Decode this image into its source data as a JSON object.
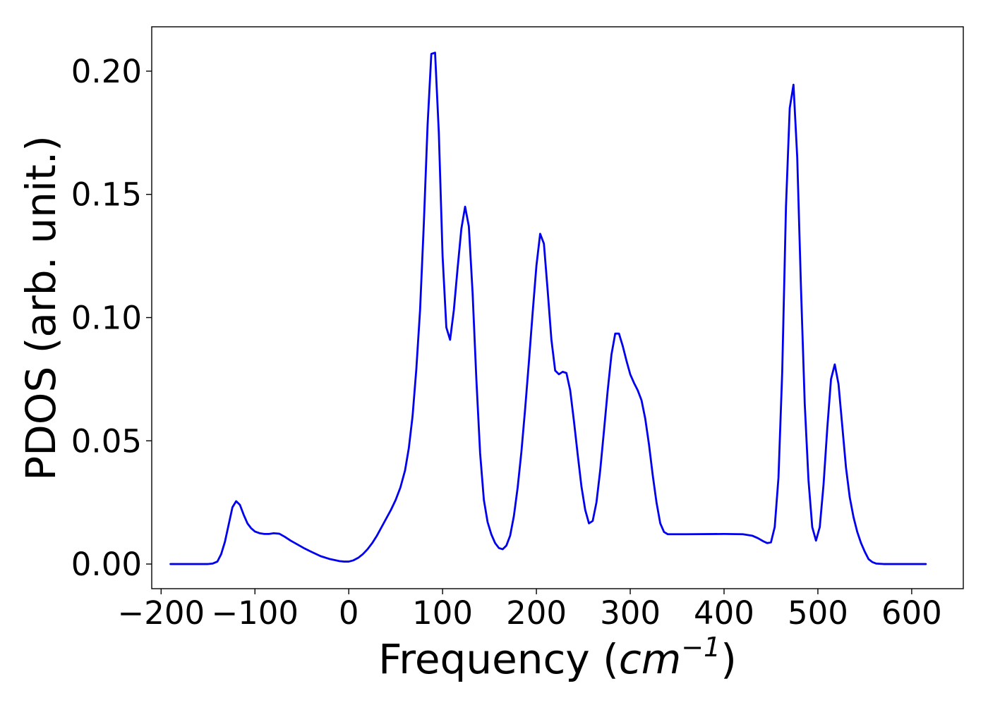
{
  "chart_data": {
    "type": "line",
    "xlabel": "Frequency (cm⁻¹)",
    "xlabel_parts": {
      "prefix": "Frequency (",
      "unit": "cm",
      "exponent": "−1",
      "suffix": ")"
    },
    "ylabel": "PDOS (arb. unit.)",
    "xlim": [
      -210,
      655
    ],
    "ylim": [
      -0.01,
      0.218
    ],
    "grid": false,
    "xticks": [
      -200,
      -100,
      0,
      100,
      200,
      300,
      400,
      500,
      600
    ],
    "xtick_labels": [
      "−200",
      "−100",
      "0",
      "100",
      "200",
      "300",
      "400",
      "500",
      "600"
    ],
    "yticks": [
      0.0,
      0.05,
      0.1,
      0.15,
      0.2
    ],
    "ytick_labels": [
      "0.00",
      "0.05",
      "0.10",
      "0.15",
      "0.20"
    ],
    "series": [
      {
        "color": "#0000ee",
        "x": [
          -190,
          -150,
          -145,
          -140,
          -136,
          -132,
          -128,
          -124,
          -120,
          -116,
          -112,
          -108,
          -104,
          -100,
          -95,
          -90,
          -85,
          -80,
          -74,
          -68,
          -62,
          -55,
          -48,
          -40,
          -30,
          -20,
          -10,
          -5,
          0,
          5,
          10,
          15,
          20,
          25,
          30,
          35,
          40,
          45,
          50,
          55,
          60,
          64,
          68,
          72,
          76,
          80,
          84,
          88,
          92,
          96,
          100,
          104,
          108,
          112,
          116,
          120,
          124,
          128,
          132,
          136,
          140,
          144,
          148,
          152,
          156,
          160,
          164,
          168,
          172,
          176,
          180,
          184,
          188,
          192,
          196,
          200,
          204,
          208,
          212,
          216,
          220,
          224,
          228,
          232,
          236,
          240,
          244,
          248,
          252,
          256,
          260,
          264,
          268,
          272,
          276,
          280,
          284,
          288,
          292,
          296,
          300,
          304,
          308,
          312,
          316,
          320,
          324,
          328,
          332,
          336,
          340,
          345,
          360,
          400,
          420,
          430,
          436,
          442,
          446,
          450,
          454,
          458,
          462,
          466,
          470,
          474,
          478,
          482,
          486,
          490,
          494,
          498,
          502,
          506,
          510,
          514,
          518,
          522,
          526,
          530,
          534,
          538,
          542,
          546,
          550,
          554,
          558,
          562,
          570,
          615
        ],
        "y": [
          0.0,
          0.0,
          0.0002,
          0.001,
          0.004,
          0.009,
          0.016,
          0.023,
          0.0255,
          0.024,
          0.02,
          0.0165,
          0.0145,
          0.0132,
          0.0125,
          0.0122,
          0.0122,
          0.0125,
          0.0123,
          0.011,
          0.0095,
          0.008,
          0.0065,
          0.005,
          0.0032,
          0.002,
          0.0012,
          0.001,
          0.001,
          0.0015,
          0.0025,
          0.004,
          0.006,
          0.0085,
          0.0115,
          0.015,
          0.0185,
          0.022,
          0.026,
          0.031,
          0.038,
          0.047,
          0.06,
          0.079,
          0.103,
          0.138,
          0.178,
          0.207,
          0.2075,
          0.175,
          0.125,
          0.096,
          0.091,
          0.103,
          0.12,
          0.136,
          0.145,
          0.137,
          0.11,
          0.075,
          0.045,
          0.026,
          0.017,
          0.012,
          0.0085,
          0.0065,
          0.006,
          0.0075,
          0.0115,
          0.0195,
          0.031,
          0.0455,
          0.063,
          0.082,
          0.102,
          0.121,
          0.134,
          0.13,
          0.111,
          0.091,
          0.0785,
          0.077,
          0.078,
          0.0775,
          0.0705,
          0.058,
          0.0445,
          0.0315,
          0.022,
          0.0165,
          0.0175,
          0.025,
          0.038,
          0.054,
          0.0705,
          0.085,
          0.0935,
          0.0935,
          0.0885,
          0.0825,
          0.077,
          0.0735,
          0.0705,
          0.0665,
          0.059,
          0.0485,
          0.036,
          0.025,
          0.0165,
          0.013,
          0.0121,
          0.0121,
          0.0121,
          0.0122,
          0.0121,
          0.0115,
          0.0105,
          0.0092,
          0.0085,
          0.0088,
          0.015,
          0.035,
          0.078,
          0.145,
          0.185,
          0.1945,
          0.165,
          0.112,
          0.065,
          0.034,
          0.015,
          0.0095,
          0.015,
          0.032,
          0.055,
          0.075,
          0.081,
          0.073,
          0.056,
          0.039,
          0.027,
          0.019,
          0.013,
          0.0085,
          0.005,
          0.002,
          0.0008,
          0.0002,
          0.0,
          0.0
        ]
      }
    ]
  }
}
